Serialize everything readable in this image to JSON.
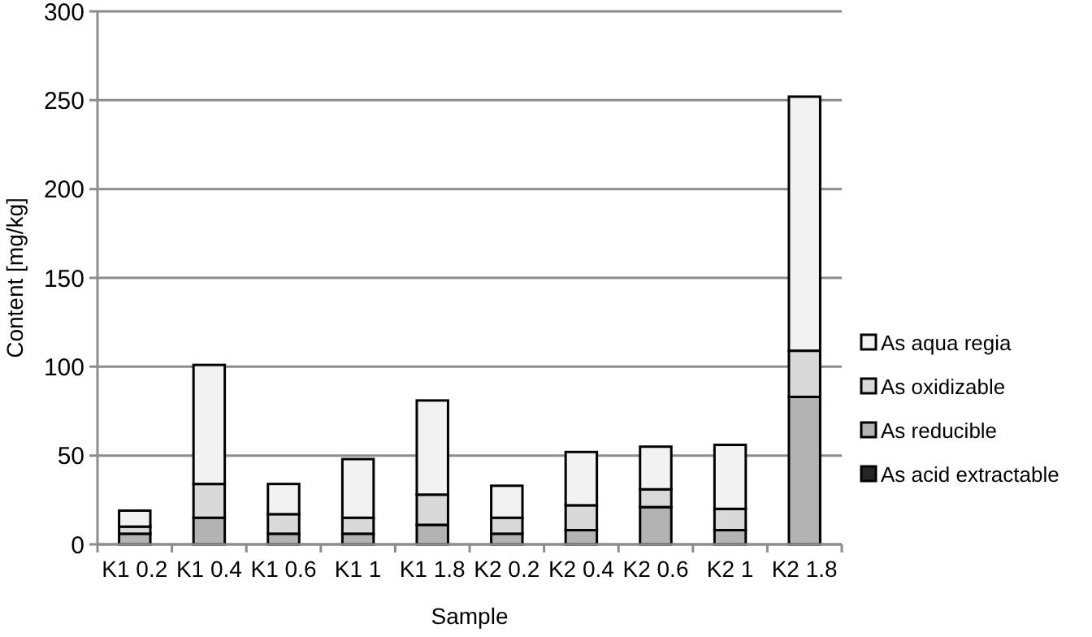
{
  "chart_data": {
    "type": "bar",
    "stacked": true,
    "xlabel": "Sample",
    "ylabel": "Content [mg/kg]",
    "categories": [
      "K1 0.2",
      "K1 0.4",
      "K1 0.6",
      "K1 1",
      "K1 1.8",
      "K2 0.2",
      "K2 0.4",
      "K2 0.6",
      "K2 1",
      "K2 1.8"
    ],
    "series": [
      {
        "name": "As acid extractable",
        "color": "#262626",
        "values": [
          0,
          0,
          0,
          0,
          0,
          0,
          0,
          0,
          0,
          0
        ]
      },
      {
        "name": "As reducible",
        "color": "#b3b3b3",
        "values": [
          6,
          15,
          6,
          6,
          11,
          6,
          8,
          21,
          8,
          83
        ]
      },
      {
        "name": "As oxidizable",
        "color": "#d9d9d9",
        "values": [
          4,
          19,
          11,
          9,
          17,
          9,
          14,
          10,
          12,
          26
        ]
      },
      {
        "name": "As aqua regia",
        "color": "#f2f2f2",
        "values": [
          9,
          67,
          17,
          33,
          53,
          18,
          30,
          24,
          36,
          143
        ]
      }
    ],
    "ylim": [
      0,
      300
    ],
    "yticks": [
      0,
      50,
      100,
      150,
      200,
      250,
      300
    ],
    "grid": "y",
    "legend": "right"
  }
}
